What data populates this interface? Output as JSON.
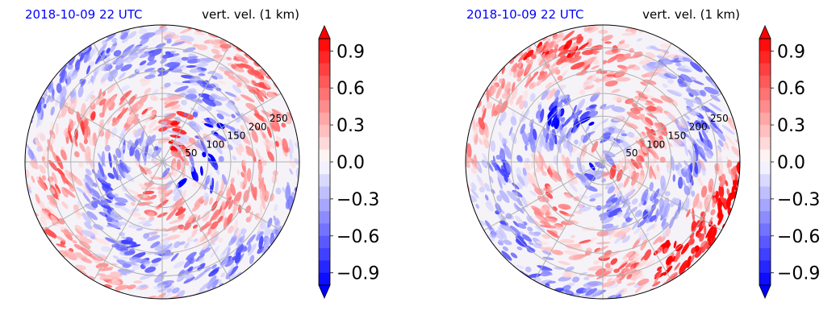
{
  "chart_data": [
    {
      "type": "heatmap",
      "projection": "polar",
      "title_left": "2018-10-09 22 UTC",
      "title_right": "vert. vel. (1 km)",
      "radial_ticks": [
        "50",
        "100",
        "150",
        "200",
        "250"
      ],
      "radial_values": [
        50,
        100,
        150,
        200,
        250
      ],
      "r_max": 300,
      "grid": true,
      "colorbar": {
        "range": [
          -1.0,
          1.0
        ],
        "extend": "both",
        "tick_values": [
          0.9,
          0.6,
          0.3,
          0.0,
          -0.3,
          -0.6,
          -0.9
        ],
        "tick_labels": [
          "0.9",
          "0.6",
          "0.3",
          "0.0",
          "−0.3",
          "−0.6",
          "−0.9"
        ],
        "colormap": "bwr",
        "color_low": "#0000ff",
        "color_mid": "#ffffff",
        "color_high": "#ff0000"
      }
    },
    {
      "type": "heatmap",
      "projection": "polar",
      "title_left": "2018-10-09 22 UTC",
      "title_right": "vert. vel. (1 km)",
      "radial_ticks": [
        "50",
        "100",
        "150",
        "200",
        "250"
      ],
      "radial_values": [
        50,
        100,
        150,
        200,
        250
      ],
      "r_max": 300,
      "grid": true,
      "colorbar": {
        "range": [
          -1.0,
          1.0
        ],
        "extend": "both",
        "tick_values": [
          0.9,
          0.6,
          0.3,
          0.0,
          -0.3,
          -0.6,
          -0.9
        ],
        "tick_labels": [
          "0.9",
          "0.6",
          "0.3",
          "0.0",
          "−0.3",
          "−0.6",
          "−0.9"
        ],
        "colormap": "bwr",
        "color_low": "#0000ff",
        "color_mid": "#ffffff",
        "color_high": "#ff0000"
      }
    }
  ]
}
